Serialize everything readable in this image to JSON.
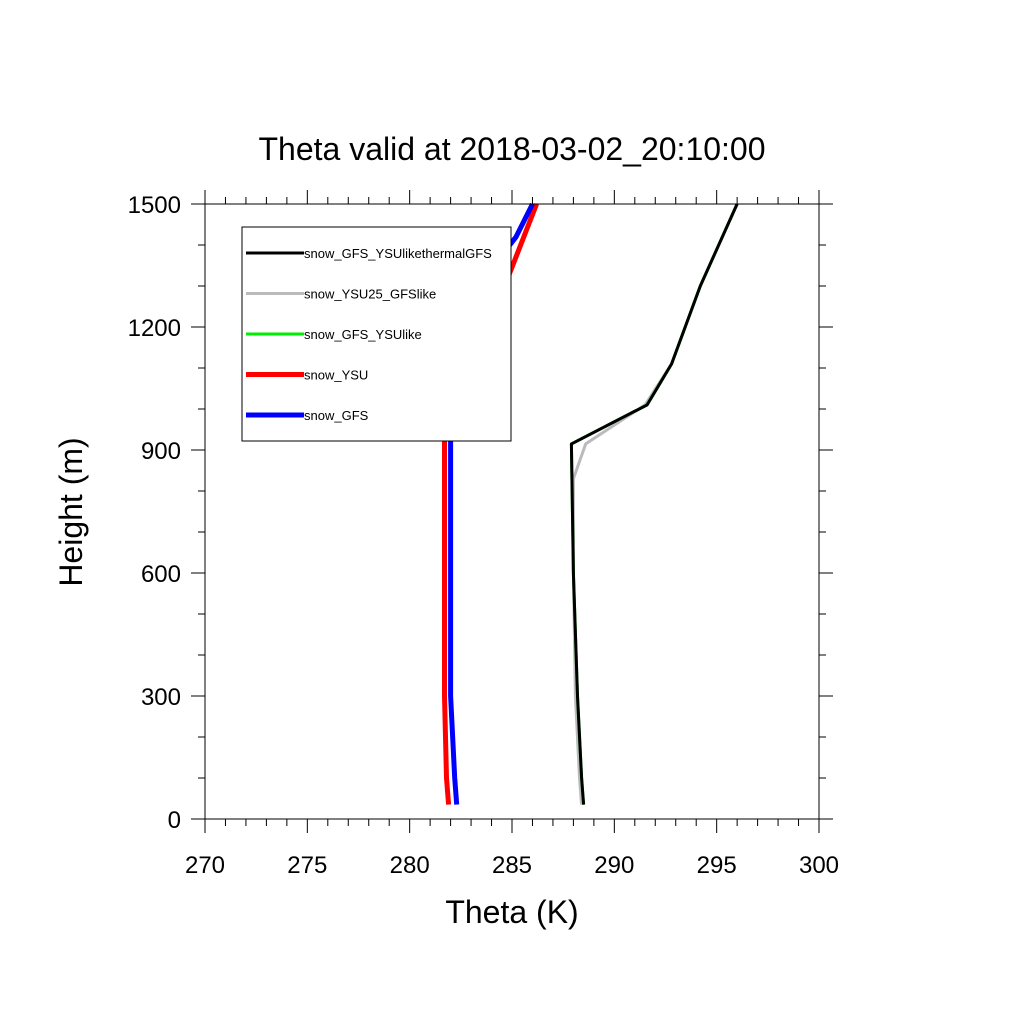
{
  "chart_data": {
    "type": "line",
    "title": "Theta valid at 2018-03-02_20:10:00",
    "xlabel": "Theta (K)",
    "ylabel": "Height (m)",
    "xlim": [
      270,
      300
    ],
    "ylim": [
      0,
      1500
    ],
    "xticks": [
      "270",
      "275",
      "280",
      "285",
      "290",
      "295",
      "300"
    ],
    "yticks": [
      "0",
      "300",
      "600",
      "900",
      "1200",
      "1500"
    ],
    "grid": false,
    "legend_position": "top-left",
    "series": [
      {
        "name": "snow_GFS_YSUlikethermalGFS",
        "color": "#000000",
        "x": [
          288.5,
          288.4,
          288.2,
          288.0,
          287.9,
          291.6,
          292.8,
          294.2,
          296.0
        ],
        "y": [
          35,
          100,
          300,
          600,
          915,
          1010,
          1110,
          1300,
          1500
        ]
      },
      {
        "name": "snow_YSU25_GFSlike",
        "color": "#bbbbbb",
        "x": [
          288.4,
          288.3,
          288.1,
          288.0,
          288.0,
          288.6,
          291.5,
          292.8,
          294.2,
          296.0
        ],
        "y": [
          35,
          100,
          300,
          600,
          830,
          915,
          1010,
          1110,
          1300,
          1500
        ]
      },
      {
        "name": "snow_GFS_YSUlike",
        "color": "#00ee00",
        "x": [
          288.5,
          288.4,
          288.2,
          288.0,
          287.9,
          291.6,
          292.8,
          294.2,
          296.0
        ],
        "y": [
          35,
          100,
          300,
          600,
          915,
          1010,
          1110,
          1300,
          1500
        ]
      },
      {
        "name": "snow_YSU",
        "color": "#ff0000",
        "x": [
          281.9,
          281.8,
          281.7,
          281.7,
          281.7,
          282.3,
          283.9,
          284.8,
          286.2
        ],
        "y": [
          35,
          100,
          300,
          600,
          995,
          1090,
          1200,
          1320,
          1500
        ]
      },
      {
        "name": "snow_GFS",
        "color": "#0000ff",
        "x": [
          282.3,
          282.2,
          282.0,
          282.0,
          282.0,
          282.2,
          283.5,
          285.2,
          286.0
        ],
        "y": [
          35,
          100,
          300,
          600,
          995,
          1195,
          1310,
          1420,
          1500
        ]
      }
    ]
  }
}
